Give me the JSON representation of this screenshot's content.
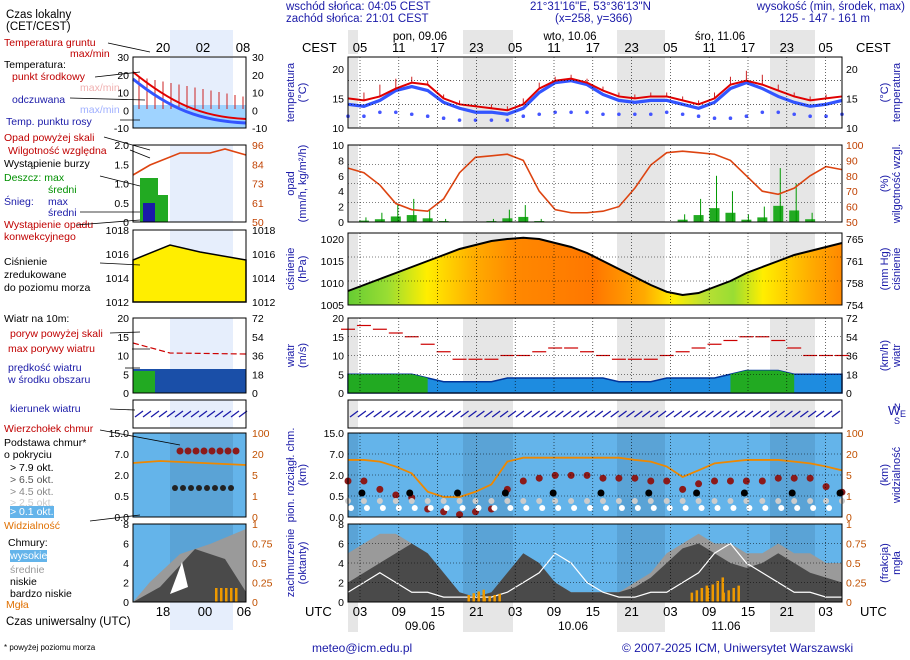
{
  "header": {
    "sunrise": "wschód słońca: 04:05 CEST",
    "sunset": "zachód słońca: 21:01 CEST",
    "coords": "21°31'16\"E, 53°36'13\"N",
    "grid": "(x=258, y=366)",
    "elev_title": "wysokość (min, środek, max)",
    "elev_values": "125 - 147 - 161 m"
  },
  "top_axis": {
    "tz": "CEST",
    "hours": [
      "05",
      "11",
      "17",
      "23",
      "05",
      "11",
      "17",
      "23",
      "05",
      "11",
      "17",
      "23",
      "05"
    ],
    "days": [
      "pon, 09.06",
      "wto, 10.06",
      "śro, 11.06"
    ]
  },
  "bottom_axis": {
    "tz": "UTC",
    "hours": [
      "03",
      "09",
      "15",
      "21",
      "03",
      "09",
      "15",
      "21",
      "03",
      "09",
      "15",
      "21",
      "03"
    ],
    "dates": [
      "09.06",
      "10.06",
      "11.06"
    ]
  },
  "footer": {
    "note": "* powyżej poziomu morza",
    "email": "meteo@icm.edu.pl",
    "copyright": "© 2007-2025 ICM, Uniwersytet Warszawski"
  },
  "legend": {
    "tz_local": "Czas lokalny",
    "tz_local2": "(CET/CEST)",
    "tz_local_ticks": [
      "20",
      "02",
      "08"
    ],
    "tz_utc": "Czas uniwersalny (UTC)",
    "tz_utc_ticks": [
      "18",
      "00",
      "06"
    ],
    "temp": {
      "ground": "Temperatura gruntu",
      "ground_sub": "max/min",
      "title": "Temperatura:",
      "mid": "punkt środkowy",
      "max": "max/min",
      "felt": "odczuwana",
      "felt_sub": "max/min",
      "dew": "Temp. punktu rosy",
      "ticks": [
        "30",
        "20",
        "10",
        "0",
        "-10"
      ]
    },
    "precip": {
      "above": "Opad powyżej skali",
      "humidity": "Wilgotność względna",
      "storm": "Wystąpienie burzy",
      "rain": "Deszcz: max",
      "rain_mid": "średni",
      "snow": "Śnieg:",
      "snow_max": "max",
      "snow_mid": "średni",
      "occ": "Wystąpienie opadu",
      "occ2": "konwekcyjnego",
      "left_ticks": [
        "2.0",
        "1.5",
        "1.0",
        "0.5",
        "0"
      ],
      "right_ticks": [
        "96",
        "84",
        "73",
        "61",
        "50"
      ]
    },
    "pressure": {
      "l1": "Ciśnienie",
      "l2": "zredukowane",
      "l3": "do poziomu morza",
      "left_ticks": [
        "1018",
        "1016",
        "1014",
        "1012"
      ],
      "right_ticks": [
        "1018",
        "1016",
        "1014",
        "1012"
      ]
    },
    "wind": {
      "title": "Wiatr na 10m:",
      "gust_above": "poryw powyżej skali",
      "gust_max": "max porywy wiatru",
      "speed": "prędkość wiatru",
      "speed2": "w środku obszaru",
      "dir": "kierunek wiatru",
      "left_ticks": [
        "20",
        "15",
        "10",
        "5",
        "0"
      ],
      "right_ticks": [
        "72",
        "54",
        "36",
        "18",
        "0"
      ]
    },
    "clouds": {
      "tops": "Wierzchołek chmur",
      "base": "Podstawa chmur*",
      "base2": "o pokryciu",
      "o79": "> 7.9 okt.",
      "o65": "> 6.5 okt.",
      "o45": "> 4.5 okt.",
      "o25": "> 2.5 okt.",
      "o01": "> 0.1 okt.",
      "vis": "Widzialność",
      "left_ticks": [
        "15.0",
        "7.0",
        "2.0",
        "0.5",
        "0.0"
      ],
      "right_ticks": [
        "100",
        "20",
        "5",
        "1",
        "0"
      ]
    },
    "cover": {
      "title": "Chmury:",
      "high": "wysokie",
      "mid": "średnie",
      "low": "niskie",
      "vlow": "bardzo niskie",
      "fog": "Mgła",
      "left_ticks": [
        "8",
        "6",
        "4",
        "2",
        "0"
      ],
      "right_ticks": [
        "1",
        "0.75",
        "0.5",
        "0.25",
        "0"
      ]
    }
  },
  "panels": {
    "temp": {
      "ylabel": "temperatura",
      "yunit": "(°C)",
      "rlabel": "temperatura",
      "runit": "(°C)"
    },
    "precip": {
      "ylabel": "opad",
      "yunit": "(mm/h, kg/m²/h)",
      "rlabel": "wilgotność wzgl.",
      "runit": "(%)"
    },
    "pressure": {
      "ylabel": "ciśnienie",
      "yunit": "(hPa)",
      "rlabel": "ciśnienie",
      "runit": "(mm Hg)"
    },
    "wind": {
      "ylabel": "wiatr",
      "yunit": "(m/s)",
      "rlabel": "wiatr",
      "runit": "(km/h)"
    },
    "dir": {
      "l": "W",
      "n": "N",
      "s": "S",
      "e": "E"
    },
    "clouds": {
      "ylabel": "pion. rozciągł. chm.",
      "yunit": "(km)",
      "rlabel": "widzialność",
      "runit": "(km)"
    },
    "cover": {
      "ylabel": "zachmurzenie",
      "yunit": "(oktanty)",
      "rlabel": "mgła",
      "runit": "(frakcja)"
    }
  },
  "chart_data": [
    {
      "type": "line",
      "title": "temperatura",
      "ylabel": "temperatura (°C)",
      "ylim": [
        5,
        23
      ],
      "yticks": [
        10,
        15,
        20
      ],
      "series": [
        {
          "name": "punkt środkowy",
          "color": "#e00000",
          "values": [
            12.5,
            12,
            13,
            15,
            16.5,
            16,
            12.5,
            11,
            10.5,
            10,
            9.5,
            11,
            15,
            17,
            17.5,
            16.5,
            14.5,
            13,
            12.5,
            13,
            13,
            12,
            11,
            12.5,
            16,
            17,
            16,
            14.5,
            13,
            12,
            12.5,
            13
          ]
        },
        {
          "name": "odczuwana",
          "color": "#1e3cff",
          "values": [
            11,
            10.5,
            12,
            14.5,
            15.5,
            14.5,
            11.5,
            10,
            9,
            9,
            8.5,
            10,
            14,
            16.5,
            17,
            16,
            13.5,
            12,
            11.5,
            12,
            12,
            11,
            10,
            11.5,
            15,
            16.5,
            15,
            13,
            11.5,
            10.5,
            11,
            12
          ]
        },
        {
          "name": "max",
          "color": "#c00000",
          "values": [
            14,
            14,
            16,
            17.5,
            18,
            17,
            13.5,
            12,
            11,
            11,
            10.5,
            12.5,
            16.5,
            18,
            18.5,
            17.5,
            15.5,
            14,
            13.5,
            14,
            14,
            13,
            12,
            14,
            18,
            19.5,
            18.5,
            16,
            14,
            13,
            13.5,
            14
          ]
        },
        {
          "name": "Temp. punktu rosy",
          "color": "#3333ff",
          "values": [
            9,
            9,
            10,
            10,
            9.5,
            9,
            8.5,
            8,
            8,
            8,
            8,
            9,
            9.5,
            10,
            10,
            10,
            9.5,
            9.5,
            9.5,
            9.5,
            10,
            9.5,
            9,
            8.5,
            8.5,
            9,
            10,
            10,
            9.5,
            9,
            9,
            9.5
          ]
        }
      ],
      "x_hours_cest": [
        "05",
        "11",
        "17",
        "23",
        "05",
        "11",
        "17",
        "23",
        "05",
        "11",
        "17",
        "23",
        "05"
      ]
    },
    {
      "type": "bar",
      "title": "opad",
      "ylabel": "opad (mm/h)",
      "ylim": [
        0,
        10
      ],
      "rlim": [
        50,
        100
      ],
      "precip": [
        0,
        0.3,
        0.6,
        1.2,
        1.5,
        0.8,
        0.2,
        0,
        0,
        0.2,
        0.8,
        1.1,
        0.2,
        0,
        0,
        0,
        0,
        0,
        0,
        0,
        0,
        0.5,
        1.5,
        3,
        2,
        0.5,
        1,
        3.5,
        2.5,
        0.6,
        0,
        0
      ],
      "humidity": [
        85,
        82,
        74,
        62,
        58,
        57,
        65,
        82,
        92,
        93,
        94,
        90,
        70,
        58,
        56,
        56,
        57,
        60,
        72,
        87,
        95,
        96,
        95,
        94,
        90,
        80,
        70,
        68,
        72,
        80,
        86,
        84
      ]
    },
    {
      "type": "area",
      "title": "ciśnienie",
      "ylabel": "ciśnienie (hPa)",
      "ylim": [
        1005,
        1023
      ],
      "values": [
        1008.5,
        1010,
        1011.5,
        1013,
        1014.5,
        1016,
        1017.5,
        1019,
        1020,
        1021,
        1021.5,
        1021.8,
        1021.5,
        1020.5,
        1019.5,
        1018,
        1016,
        1014,
        1012,
        1010,
        1008.3,
        1007.5,
        1008,
        1009.5,
        1011,
        1013,
        1014.5,
        1016,
        1017.5,
        1018.5,
        1019.5,
        1020.5
      ]
    },
    {
      "type": "line",
      "title": "wiatr",
      "ylabel": "wiatr (m/s)",
      "ylim": [
        0,
        20
      ],
      "series": [
        {
          "name": "prędkość wiatru",
          "values": [
            5,
            5,
            5,
            5,
            5,
            4,
            3,
            3,
            3,
            3,
            4,
            4,
            4,
            4,
            4,
            4,
            4,
            3,
            3,
            3,
            4,
            4,
            4,
            4,
            5,
            6,
            6,
            6,
            5,
            5,
            5,
            5
          ]
        },
        {
          "name": "max porywy wiatru",
          "values": [
            17,
            18,
            17,
            16,
            15,
            13,
            11,
            9,
            9,
            9,
            10,
            10,
            11,
            12,
            12,
            11,
            10,
            9,
            9,
            9,
            10,
            11,
            12,
            13,
            14,
            15,
            15,
            14,
            12,
            10,
            10,
            10
          ]
        }
      ]
    },
    {
      "type": "scatter",
      "title": "pion. rozciągł. chm. / widzialność",
      "ylabel": "km",
      "ylim": [
        0,
        15
      ],
      "cloud_tops": [
        7.5,
        7.5,
        6,
        5,
        4.5,
        2.5,
        2,
        1.5,
        2,
        2.5,
        6,
        7.5,
        8,
        8.5,
        8.5,
        8.5,
        8,
        8,
        8,
        7.5,
        7.5,
        6,
        7,
        7.5,
        7.5,
        7.5,
        7.5,
        8,
        8,
        8,
        6.5,
        5.5
      ],
      "visibility": [
        22,
        22,
        20,
        15,
        10,
        3,
        2,
        2,
        3,
        5,
        20,
        25,
        25,
        25,
        25,
        25,
        25,
        25,
        22,
        20,
        15,
        8,
        12,
        18,
        20,
        22,
        22,
        22,
        20,
        18,
        15,
        12
      ]
    },
    {
      "type": "area",
      "title": "zachmurzenie",
      "ylabel": "zachmurzenie (oktanty)",
      "ylim": [
        0,
        8
      ],
      "series": [
        {
          "name": "niskie",
          "values": [
            2,
            3,
            4,
            5,
            6,
            5,
            3,
            1,
            0.5,
            1,
            3,
            5,
            4,
            2,
            1,
            1,
            1,
            1,
            1.5,
            2.5,
            4,
            5.5,
            6,
            5,
            4,
            3.5,
            4,
            5,
            4,
            3,
            2.5,
            2
          ]
        },
        {
          "name": "średnie",
          "values": [
            5,
            6,
            7,
            7,
            6,
            4,
            2,
            1,
            0.5,
            1,
            2,
            4,
            3,
            2,
            1,
            1,
            1,
            1,
            2,
            3,
            5,
            6,
            7,
            6,
            6,
            5,
            5,
            6,
            5,
            5,
            4,
            4
          ]
        },
        {
          "name": "wysokie",
          "values": [
            1,
            2,
            3,
            2,
            1,
            1,
            0.5,
            0.5,
            0.5,
            0.5,
            1,
            2,
            3,
            5,
            4,
            2,
            1,
            0.5,
            0.5,
            1,
            1,
            2,
            3,
            5,
            6,
            4,
            3,
            2,
            1,
            1,
            0.5,
            0.5
          ]
        },
        {
          "name": "Mgła",
          "values": [
            0,
            0,
            0,
            0,
            0,
            0,
            0,
            0,
            0.15,
            0.1,
            0,
            0,
            0,
            0,
            0,
            0,
            0,
            0,
            0,
            0,
            0,
            0,
            0.2,
            0.3,
            0.2,
            0,
            0,
            0,
            0,
            0,
            0,
            0
          ]
        }
      ]
    }
  ]
}
